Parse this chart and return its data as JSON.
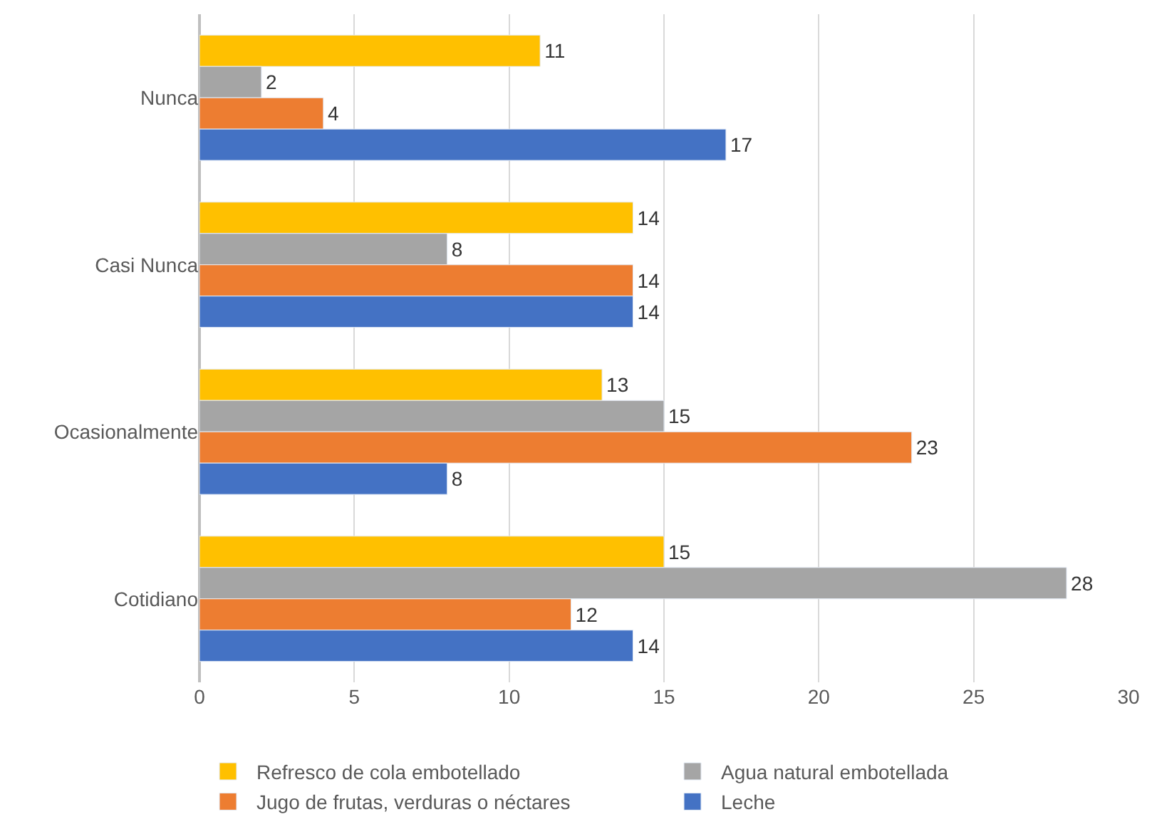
{
  "chart_data": {
    "type": "bar",
    "orientation": "horizontal",
    "categories": [
      "Nunca",
      "Casi Nunca",
      "Ocasionalmente",
      "Cotidiano"
    ],
    "series": [
      {
        "name": "Refresco de cola embotellado",
        "color": "#ffc000",
        "values": [
          11,
          14,
          13,
          15
        ]
      },
      {
        "name": "Agua natural embotellada",
        "color": "#a5a5a5",
        "values": [
          2,
          8,
          15,
          28
        ]
      },
      {
        "name": "Jugo de frutas, verduras o néctares",
        "color": "#ed7d31",
        "values": [
          4,
          14,
          23,
          12
        ]
      },
      {
        "name": "Leche",
        "color": "#4472c4",
        "values": [
          17,
          14,
          8,
          14
        ]
      }
    ],
    "xlim": [
      0,
      30
    ],
    "xticks": [
      0,
      5,
      10,
      15,
      20,
      25,
      30
    ],
    "grid": "x",
    "legend": "bottom",
    "data_labels": true
  }
}
